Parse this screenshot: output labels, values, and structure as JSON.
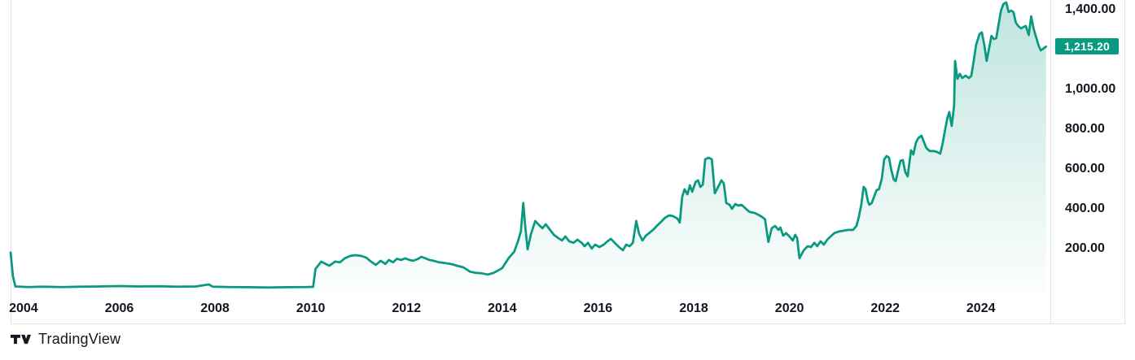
{
  "colors": {
    "background": "#ffffff",
    "line": "#089981",
    "fill_top": "rgba(8,153,129,0.26)",
    "fill_bottom": "rgba(8,153,129,0.01)",
    "badge_bg": "#089981",
    "badge_text": "#ffffff",
    "axis_text": "#131722",
    "border": "#e0e3eb",
    "logo": "#131722"
  },
  "price_scale": {
    "last_price_label": "1,215.20"
  },
  "attribution": {
    "text": "TradingView"
  },
  "chart_data": {
    "type": "area",
    "title": "",
    "xlabel": "",
    "ylabel": "",
    "grid": false,
    "legend": "none",
    "x_unit": "year",
    "x_range": [
      2003.73,
      2025.45
    ],
    "y_range": [
      -33,
      1449
    ],
    "last_price": 1215.2,
    "x_ticks": [
      {
        "v": 2004,
        "label": "2004"
      },
      {
        "v": 2006,
        "label": "2006"
      },
      {
        "v": 2008,
        "label": "2008"
      },
      {
        "v": 2010,
        "label": "2010"
      },
      {
        "v": 2012,
        "label": "2012"
      },
      {
        "v": 2014,
        "label": "2014"
      },
      {
        "v": 2016,
        "label": "2016"
      },
      {
        "v": 2018,
        "label": "2018"
      },
      {
        "v": 2020,
        "label": "2020"
      },
      {
        "v": 2022,
        "label": "2022"
      },
      {
        "v": 2024,
        "label": "2024"
      }
    ],
    "y_ticks": [
      {
        "v": 1400,
        "label": "1,400.00"
      },
      {
        "v": 1000,
        "label": "1,000.00"
      },
      {
        "v": 800,
        "label": "800.00"
      },
      {
        "v": 600,
        "label": "600.00"
      },
      {
        "v": 400,
        "label": "400.00"
      },
      {
        "v": 200,
        "label": "200.00"
      }
    ],
    "x": [
      2003.73,
      2003.78,
      2003.83,
      2004.1,
      2004.4,
      2004.8,
      2005.2,
      2005.6,
      2006.0,
      2006.4,
      2006.8,
      2007.2,
      2007.6,
      2007.87,
      2007.95,
      2008.3,
      2008.7,
      2009.1,
      2009.5,
      2009.9,
      2010.05,
      2010.1,
      2010.22,
      2010.31,
      2010.39,
      2010.51,
      2010.61,
      2010.71,
      2010.82,
      2010.93,
      2011.04,
      2011.16,
      2011.26,
      2011.36,
      2011.46,
      2011.56,
      2011.63,
      2011.72,
      2011.8,
      2011.89,
      2011.97,
      2012.06,
      2012.14,
      2012.23,
      2012.31,
      2012.4,
      2012.48,
      2012.57,
      2012.68,
      2012.82,
      2012.94,
      2013.06,
      2013.19,
      2013.33,
      2013.45,
      2013.57,
      2013.7,
      2013.82,
      2013.91,
      2014.0,
      2014.13,
      2014.25,
      2014.33,
      2014.39,
      2014.44,
      2014.48,
      2014.53,
      2014.6,
      2014.69,
      2014.77,
      2014.84,
      2014.91,
      2015.0,
      2015.08,
      2015.17,
      2015.25,
      2015.32,
      2015.4,
      2015.49,
      2015.57,
      2015.66,
      2015.72,
      2015.79,
      2015.87,
      2015.94,
      2016.03,
      2016.12,
      2016.2,
      2016.27,
      2016.35,
      2016.44,
      2016.52,
      2016.59,
      2016.66,
      2016.73,
      2016.8,
      2016.86,
      2016.93,
      2017.0,
      2017.07,
      2017.15,
      2017.23,
      2017.32,
      2017.4,
      2017.49,
      2017.57,
      2017.66,
      2017.71,
      2017.76,
      2017.81,
      2017.87,
      2017.92,
      2017.97,
      2018.04,
      2018.09,
      2018.14,
      2018.19,
      2018.24,
      2018.31,
      2018.38,
      2018.44,
      2018.51,
      2018.58,
      2018.63,
      2018.68,
      2018.75,
      2018.8,
      2018.87,
      2018.93,
      2019.0,
      2019.09,
      2019.17,
      2019.26,
      2019.34,
      2019.43,
      2019.49,
      2019.56,
      2019.63,
      2019.7,
      2019.77,
      2019.81,
      2019.87,
      2019.93,
      2020.0,
      2020.07,
      2020.12,
      2020.16,
      2020.21,
      2020.3,
      2020.38,
      2020.45,
      2020.52,
      2020.58,
      2020.65,
      2020.72,
      2020.79,
      2020.86,
      2020.94,
      2021.03,
      2021.13,
      2021.23,
      2021.33,
      2021.4,
      2021.45,
      2021.5,
      2021.55,
      2021.59,
      2021.64,
      2021.67,
      2021.72,
      2021.77,
      2021.82,
      2021.87,
      2021.93,
      2021.98,
      2022.03,
      2022.08,
      2022.13,
      2022.18,
      2022.22,
      2022.27,
      2022.32,
      2022.37,
      2022.42,
      2022.47,
      2022.54,
      2022.59,
      2022.64,
      2022.69,
      2022.76,
      2022.81,
      2022.86,
      2022.93,
      2023.01,
      2023.08,
      2023.15,
      2023.2,
      2023.25,
      2023.3,
      2023.34,
      2023.39,
      2023.44,
      2023.46,
      2023.51,
      2023.56,
      2023.61,
      2023.68,
      2023.75,
      2023.8,
      2023.85,
      2023.9,
      2023.97,
      2024.02,
      2024.07,
      2024.12,
      2024.17,
      2024.22,
      2024.27,
      2024.32,
      2024.37,
      2024.42,
      2024.47,
      2024.53,
      2024.58,
      2024.63,
      2024.68,
      2024.73,
      2024.78,
      2024.84,
      2024.89,
      2024.94,
      2025.0,
      2025.05,
      2025.1,
      2025.15,
      2025.2,
      2025.25,
      2025.3,
      2025.36
    ],
    "y": [
      180,
      60,
      10,
      7,
      9,
      7,
      9,
      10,
      12,
      10,
      11,
      9,
      10,
      20,
      9,
      7,
      6,
      5,
      6,
      7,
      8,
      98,
      135,
      123,
      114,
      135,
      131,
      151,
      163,
      167,
      164,
      155,
      135,
      118,
      139,
      123,
      143,
      131,
      149,
      143,
      151,
      143,
      139,
      147,
      159,
      151,
      143,
      139,
      131,
      127,
      122,
      114,
      106,
      84,
      78,
      76,
      70,
      78,
      90,
      102,
      151,
      184,
      237,
      286,
      429,
      315,
      196,
      273,
      339,
      318,
      302,
      322,
      294,
      269,
      253,
      241,
      261,
      237,
      229,
      245,
      229,
      212,
      229,
      200,
      220,
      208,
      220,
      237,
      249,
      229,
      208,
      192,
      220,
      212,
      229,
      339,
      273,
      241,
      265,
      278,
      294,
      314,
      335,
      355,
      367,
      363,
      351,
      331,
      461,
      498,
      473,
      518,
      486,
      535,
      543,
      510,
      522,
      649,
      657,
      649,
      478,
      510,
      543,
      527,
      429,
      420,
      400,
      424,
      416,
      420,
      400,
      384,
      380,
      371,
      359,
      347,
      233,
      302,
      314,
      294,
      306,
      265,
      278,
      261,
      241,
      269,
      253,
      151,
      192,
      212,
      208,
      229,
      212,
      237,
      220,
      245,
      261,
      278,
      286,
      290,
      294,
      294,
      314,
      359,
      420,
      510,
      498,
      437,
      420,
      429,
      461,
      494,
      498,
      551,
      649,
      665,
      657,
      592,
      547,
      539,
      592,
      641,
      645,
      584,
      563,
      694,
      673,
      731,
      755,
      767,
      735,
      706,
      690,
      690,
      686,
      677,
      727,
      796,
      857,
      886,
      816,
      918,
      1143,
      1053,
      1078,
      1057,
      1069,
      1057,
      1069,
      1143,
      1224,
      1278,
      1286,
      1224,
      1143,
      1204,
      1269,
      1253,
      1257,
      1327,
      1396,
      1429,
      1437,
      1388,
      1396,
      1388,
      1335,
      1318,
      1306,
      1314,
      1318,
      1273,
      1367,
      1306,
      1265,
      1224,
      1196,
      1204,
      1215.2
    ]
  }
}
